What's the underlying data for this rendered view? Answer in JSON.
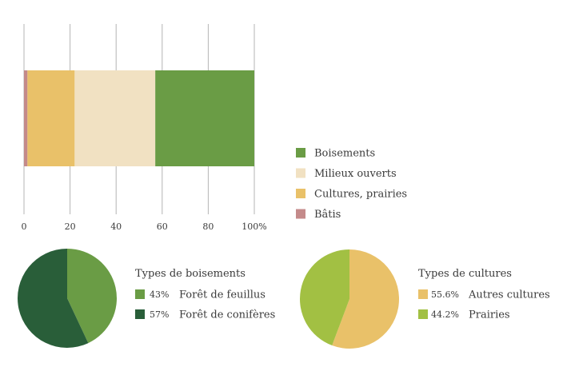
{
  "chart_data": [
    {
      "type": "bar",
      "orientation": "horizontal",
      "stacked": true,
      "xlim": [
        0,
        100
      ],
      "x_ticks": [
        "0",
        "20",
        "40",
        "60",
        "80",
        "100%"
      ],
      "grid": true,
      "legend_position": "right",
      "series": [
        {
          "name": "Bâtis",
          "value": 1.5,
          "color": "#c48a8a"
        },
        {
          "name": "Cultures, prairies",
          "value": 20.5,
          "color": "#e9c169"
        },
        {
          "name": "Milieux ouverts",
          "value": 35,
          "color": "#f1e1c2"
        },
        {
          "name": "Boisements",
          "value": 43,
          "color": "#6a9c45"
        }
      ],
      "legend_order": [
        "Boisements",
        "Milieux ouverts",
        "Cultures, prairies",
        "Bâtis"
      ]
    },
    {
      "type": "pie",
      "title": "Types de boisements",
      "slices": [
        {
          "label": "Forêt de feuillus",
          "pct_label": "43%",
          "value": 43,
          "color": "#6a9c45"
        },
        {
          "label": "Forêt de conifères",
          "pct_label": "57%",
          "value": 57,
          "color": "#295e39"
        }
      ]
    },
    {
      "type": "pie",
      "title": "Types de cultures",
      "slices": [
        {
          "label": "Autres cultures",
          "pct_label": "55.6%",
          "value": 55.6,
          "color": "#e9c169"
        },
        {
          "label": "Prairies",
          "pct_label": "44.2%",
          "value": 44.2,
          "color": "#a2c043"
        }
      ]
    }
  ]
}
